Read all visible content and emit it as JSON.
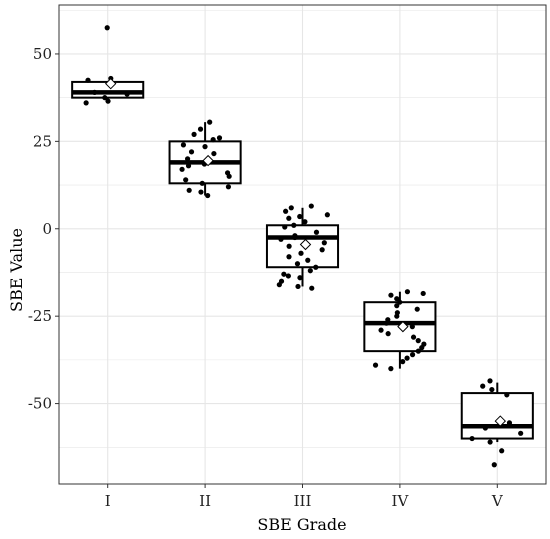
{
  "chart_data": {
    "type": "box",
    "title": "",
    "xlabel": "SBE Grade",
    "ylabel": "SBE Value",
    "ylim": [
      -73,
      64
    ],
    "yticks": [
      50,
      25,
      0,
      -25,
      -50
    ],
    "ytick_labels": [
      "50",
      "25",
      "0",
      "-25",
      "-50"
    ],
    "grid": true,
    "legend": "none",
    "categories": [
      "I",
      "II",
      "III",
      "IV",
      "V"
    ],
    "boxes": [
      {
        "category": "I",
        "q1": 37.5,
        "median": 39,
        "q3": 42,
        "whisker_low": 36,
        "whisker_high": 42,
        "mean": 41.5
      },
      {
        "category": "II",
        "q1": 13,
        "median": 19,
        "q3": 25,
        "whisker_low": 9.5,
        "whisker_high": 30.5,
        "mean": 19.5
      },
      {
        "category": "III",
        "q1": -11,
        "median": -2.5,
        "q3": 1,
        "whisker_low": -16.5,
        "whisker_high": 6,
        "mean": -4.5
      },
      {
        "category": "IV",
        "q1": -35,
        "median": -27,
        "q3": -21,
        "whisker_low": -40,
        "whisker_high": -18,
        "mean": -28
      },
      {
        "category": "V",
        "q1": -60,
        "median": -56.5,
        "q3": -47,
        "whisker_low": -61,
        "whisker_high": -44,
        "mean": -55
      }
    ],
    "points": [
      {
        "category": "I",
        "values": [
          57.5,
          43,
          42.5,
          39,
          37.5,
          36.5,
          36,
          38.5
        ]
      },
      {
        "category": "II",
        "values": [
          30.5,
          28.5,
          27,
          26,
          25.5,
          24,
          23.5,
          22,
          21.5,
          20,
          19,
          18.5,
          18,
          17,
          16,
          15,
          14,
          13,
          12,
          11,
          10.5,
          9.5
        ]
      },
      {
        "category": "III",
        "values": [
          6.5,
          6,
          5,
          4,
          3.5,
          3,
          2,
          1,
          0.5,
          -1,
          -2,
          -2.5,
          -3,
          -4,
          -5,
          -6,
          -7,
          -8,
          -9,
          -10,
          -11,
          -12,
          -13,
          -13.5,
          -14,
          -15,
          -16,
          -16.5,
          -17
        ]
      },
      {
        "category": "IV",
        "values": [
          -18,
          -18.5,
          -19,
          -20,
          -21,
          -22,
          -23,
          -24,
          -25,
          -26,
          -27,
          -28,
          -29,
          -30,
          -31,
          -32,
          -33,
          -34,
          -35,
          -36,
          -37,
          -38,
          -39,
          -40
        ]
      },
      {
        "category": "V",
        "values": [
          -43.5,
          -45,
          -46,
          -47.5,
          -55.5,
          -57,
          -58.5,
          -60,
          -61,
          -63.5,
          -67.5
        ]
      }
    ],
    "colors": {
      "box_stroke": "#000000",
      "box_fill": "#ffffff",
      "point": "#000000",
      "mean_marker_fill": "#ffffff",
      "grid": "#e6e6e6",
      "panel_border": "#333333"
    }
  }
}
